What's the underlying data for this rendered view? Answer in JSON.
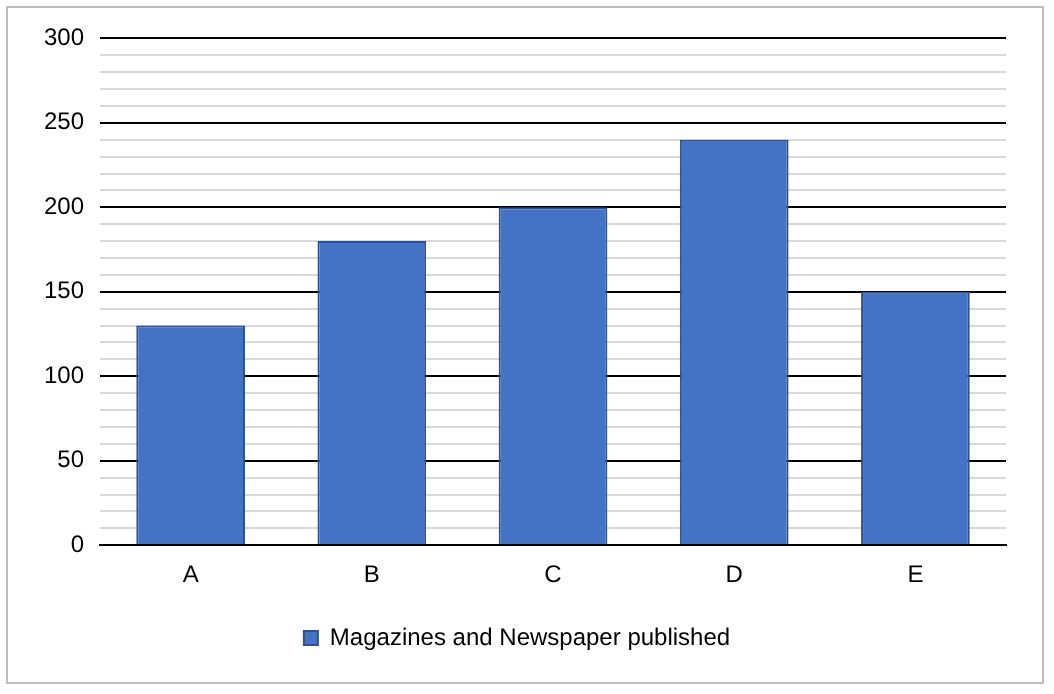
{
  "chart_data": {
    "type": "bar",
    "categories": [
      "A",
      "B",
      "C",
      "D",
      "E"
    ],
    "series": [
      {
        "name": "Magazines and Newspaper published",
        "color": "#4472c4",
        "values": [
          130,
          180,
          200,
          240,
          150
        ]
      }
    ],
    "ylim": [
      0,
      300
    ],
    "yticks": [
      0,
      {
        "value": 10,
        "label": null
      },
      {
        "value": 20,
        "label": null
      },
      {
        "value": 30,
        "label": null
      },
      {
        "value": 40,
        "label": null
      },
      50,
      {
        "value": 60,
        "label": null
      },
      {
        "value": 70,
        "label": null
      },
      {
        "value": 80,
        "label": null
      },
      {
        "value": 90,
        "label": null
      },
      100,
      {
        "value": 110,
        "label": null
      },
      {
        "value": 120,
        "label": null
      },
      {
        "value": 130,
        "label": null
      },
      {
        "value": 140,
        "label": null
      },
      150,
      {
        "value": 160,
        "label": null
      },
      {
        "value": 170,
        "label": null
      },
      {
        "value": 180,
        "label": null
      },
      {
        "value": 190,
        "label": null
      },
      200,
      {
        "value": 210,
        "label": null
      },
      {
        "value": 220,
        "label": null
      },
      {
        "value": 230,
        "label": null
      },
      {
        "value": 240,
        "label": null
      },
      250,
      {
        "value": 260,
        "label": null
      },
      {
        "value": 270,
        "label": null
      },
      {
        "value": 280,
        "label": null
      },
      {
        "value": 290,
        "label": null
      },
      300
    ],
    "grid": "y",
    "legend": "bottom"
  }
}
